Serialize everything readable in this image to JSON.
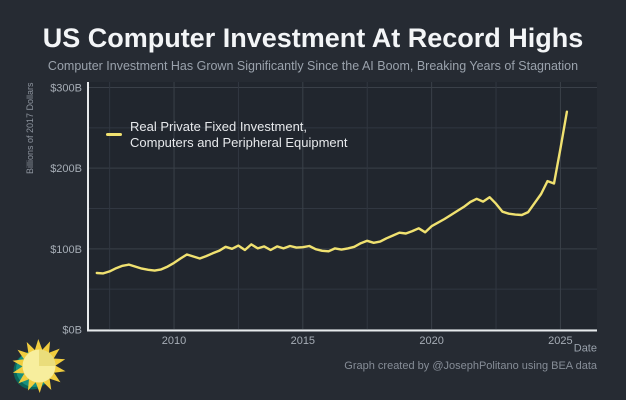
{
  "theme": {
    "background": "#262b33",
    "plot_background": "#21262e",
    "accent_line": "#f0e170",
    "axis_color": "#e7eaec",
    "grid_major": "#3a4049",
    "grid_minor": "#313741",
    "title_color": "#f3f5f7",
    "subtitle_color": "#9aa2ac",
    "tick_color": "#a6adb6",
    "muted_color": "#868d97",
    "logo_yellow": "#f1cd3e",
    "logo_pale_yellow": "#f7ee9d",
    "logo_wedge": "#eadd7b",
    "logo_teal": "#17907f",
    "logo_teal_dark": "#0a6459"
  },
  "header": {
    "title": "US Computer Investment At Record Highs",
    "subtitle": "Computer Investment Has Grown Significantly Since the AI Boom, Breaking Years of Stagnation"
  },
  "legend": {
    "line1": "Real Private Fixed Investment,",
    "line2": "Computers and Peripheral Equipment"
  },
  "footer": {
    "credit": "Graph created by @JosephPolitano using BEA data"
  },
  "chart_data": {
    "type": "line",
    "title": "US Computer Investment At Record Highs",
    "subtitle": "Computer Investment Has Grown Significantly Since the AI Boom, Breaking Years of Stagnation",
    "xlabel": "Date",
    "ylabel": "Billions of 2017 Dollars",
    "xlim": [
      2006.66,
      2026.42
    ],
    "ylim": [
      0,
      300
    ],
    "grid": true,
    "legend_position": "top-left-inside",
    "x_ticks": {
      "values": [
        2010,
        2015,
        2020,
        2025
      ],
      "labels": [
        "2010",
        "2015",
        "2020",
        "2025"
      ]
    },
    "y_ticks": {
      "values": [
        0,
        100,
        200,
        300
      ],
      "labels": [
        "$0B",
        "$100B",
        "$200B",
        "$300B"
      ]
    },
    "x_gridlines": [
      2007.5,
      2010,
      2012.5,
      2015,
      2017.5,
      2020,
      2022.5,
      2025
    ],
    "y_gridlines": [
      0,
      50,
      100,
      150,
      200,
      250,
      300
    ],
    "series": [
      {
        "name": "Real Private Fixed Investment, Computers and Peripheral Equipment",
        "color": "#f0e170",
        "x": [
          2007,
          2007.25,
          2007.5,
          2007.75,
          2008,
          2008.25,
          2008.5,
          2008.75,
          2009,
          2009.25,
          2009.5,
          2009.75,
          2010,
          2010.25,
          2010.5,
          2010.75,
          2011,
          2011.25,
          2011.5,
          2011.75,
          2012,
          2012.25,
          2012.5,
          2012.75,
          2013,
          2013.25,
          2013.5,
          2013.75,
          2014,
          2014.25,
          2014.5,
          2014.75,
          2015,
          2015.25,
          2015.5,
          2015.75,
          2016,
          2016.25,
          2016.5,
          2016.75,
          2017,
          2017.25,
          2017.5,
          2017.75,
          2018,
          2018.25,
          2018.5,
          2018.75,
          2019,
          2019.25,
          2019.5,
          2019.75,
          2020,
          2020.25,
          2020.5,
          2020.75,
          2021,
          2021.25,
          2021.5,
          2021.75,
          2022,
          2022.25,
          2022.5,
          2022.75,
          2023,
          2023.25,
          2023.5,
          2023.75,
          2024,
          2024.25,
          2024.5,
          2024.75,
          2025,
          2025.25
        ],
        "values": [
          70,
          69.5,
          72,
          76,
          79,
          80.5,
          78,
          75.5,
          74,
          73,
          74.5,
          78,
          82.5,
          88,
          93,
          90.5,
          88,
          91,
          94.5,
          97.5,
          102.5,
          100,
          104,
          98.5,
          105.5,
          100.5,
          103,
          98.5,
          103,
          100.5,
          103.5,
          101.5,
          102,
          103.5,
          99.5,
          97.5,
          97,
          100.5,
          99,
          100.5,
          102.5,
          107,
          110,
          107.5,
          109,
          113,
          116.5,
          120,
          119,
          122,
          125.5,
          120.5,
          128,
          132.5,
          137,
          142,
          147,
          152,
          158,
          162,
          158.5,
          164,
          156,
          146,
          143.5,
          142.5,
          142,
          145.5,
          157,
          168,
          184,
          181,
          224,
          270
        ]
      }
    ]
  }
}
